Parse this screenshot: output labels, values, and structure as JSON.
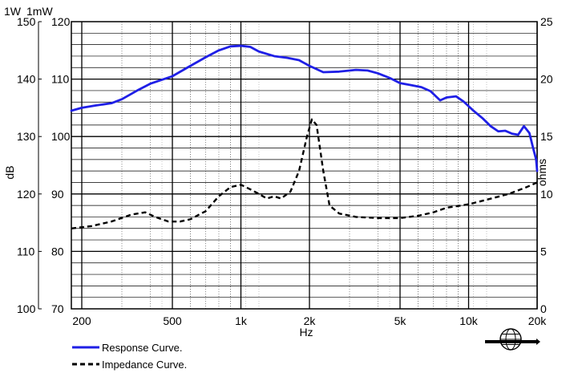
{
  "chart_data": {
    "type": "line",
    "title": "",
    "xlabel": "Hz",
    "x_scale": "log",
    "xlim": [
      180,
      20000
    ],
    "x_ticks": [
      200,
      500,
      1000,
      2000,
      5000,
      10000,
      20000
    ],
    "x_tick_labels": [
      "200",
      "500",
      "1k",
      "2k",
      "5k",
      "10k",
      "20k"
    ],
    "left_axis": {
      "label": "dB",
      "header_1w": "1W",
      "header_1mw": "1mW",
      "ylim": [
        100,
        150
      ],
      "ticks_1w": [
        100,
        110,
        120,
        130,
        140,
        150
      ],
      "ticks_1mw": [
        70,
        80,
        90,
        100,
        110,
        120
      ]
    },
    "right_axis": {
      "label": "ohms",
      "ylim": [
        0,
        25
      ],
      "ticks": [
        0,
        5,
        10,
        15,
        20,
        25
      ]
    },
    "grid": true,
    "legend_position": "bottom-left",
    "series": [
      {
        "name": "Response Curve.",
        "axis": "left",
        "color": "#1f1fe6",
        "style": "solid",
        "points": [
          [
            180,
            134.5
          ],
          [
            200,
            135.0
          ],
          [
            230,
            135.4
          ],
          [
            270,
            135.8
          ],
          [
            300,
            136.5
          ],
          [
            350,
            138.0
          ],
          [
            400,
            139.2
          ],
          [
            500,
            140.5
          ],
          [
            600,
            142.3
          ],
          [
            700,
            143.8
          ],
          [
            800,
            145.0
          ],
          [
            900,
            145.7
          ],
          [
            1000,
            145.8
          ],
          [
            1100,
            145.6
          ],
          [
            1200,
            144.8
          ],
          [
            1400,
            144.0
          ],
          [
            1600,
            143.7
          ],
          [
            1800,
            143.3
          ],
          [
            2000,
            142.3
          ],
          [
            2300,
            141.2
          ],
          [
            2700,
            141.3
          ],
          [
            3200,
            141.6
          ],
          [
            3600,
            141.5
          ],
          [
            4000,
            141.0
          ],
          [
            4500,
            140.2
          ],
          [
            5000,
            139.3
          ],
          [
            5500,
            139.0
          ],
          [
            6200,
            138.6
          ],
          [
            6800,
            137.9
          ],
          [
            7500,
            136.3
          ],
          [
            8000,
            136.8
          ],
          [
            8800,
            137.0
          ],
          [
            9500,
            136.1
          ],
          [
            10500,
            134.5
          ],
          [
            11500,
            133.2
          ],
          [
            12500,
            131.8
          ],
          [
            13500,
            130.9
          ],
          [
            14500,
            131.0
          ],
          [
            15500,
            130.5
          ],
          [
            16500,
            130.3
          ],
          [
            17500,
            131.8
          ],
          [
            18500,
            130.6
          ],
          [
            19200,
            128.0
          ],
          [
            19800,
            126.0
          ],
          [
            20000,
            124.0
          ]
        ]
      },
      {
        "name": "Impedance Curve.",
        "axis": "right",
        "color": "#000000",
        "style": "dashed",
        "points": [
          [
            180,
            7.0
          ],
          [
            220,
            7.2
          ],
          [
            270,
            7.6
          ],
          [
            330,
            8.2
          ],
          [
            380,
            8.4
          ],
          [
            420,
            8.0
          ],
          [
            480,
            7.6
          ],
          [
            540,
            7.6
          ],
          [
            600,
            7.8
          ],
          [
            700,
            8.5
          ],
          [
            800,
            9.8
          ],
          [
            900,
            10.6
          ],
          [
            1000,
            10.8
          ],
          [
            1100,
            10.4
          ],
          [
            1200,
            10.0
          ],
          [
            1300,
            9.6
          ],
          [
            1400,
            9.8
          ],
          [
            1500,
            9.6
          ],
          [
            1650,
            10.2
          ],
          [
            1800,
            12.0
          ],
          [
            1950,
            15.0
          ],
          [
            2050,
            16.5
          ],
          [
            2150,
            16.0
          ],
          [
            2300,
            12.0
          ],
          [
            2450,
            9.0
          ],
          [
            2700,
            8.3
          ],
          [
            3200,
            8.0
          ],
          [
            4000,
            7.9
          ],
          [
            5000,
            7.9
          ],
          [
            6000,
            8.1
          ],
          [
            7000,
            8.4
          ],
          [
            8000,
            8.8
          ],
          [
            10000,
            9.1
          ],
          [
            12000,
            9.5
          ],
          [
            15000,
            10.0
          ],
          [
            18000,
            10.6
          ],
          [
            20000,
            11.0
          ]
        ]
      }
    ]
  }
}
